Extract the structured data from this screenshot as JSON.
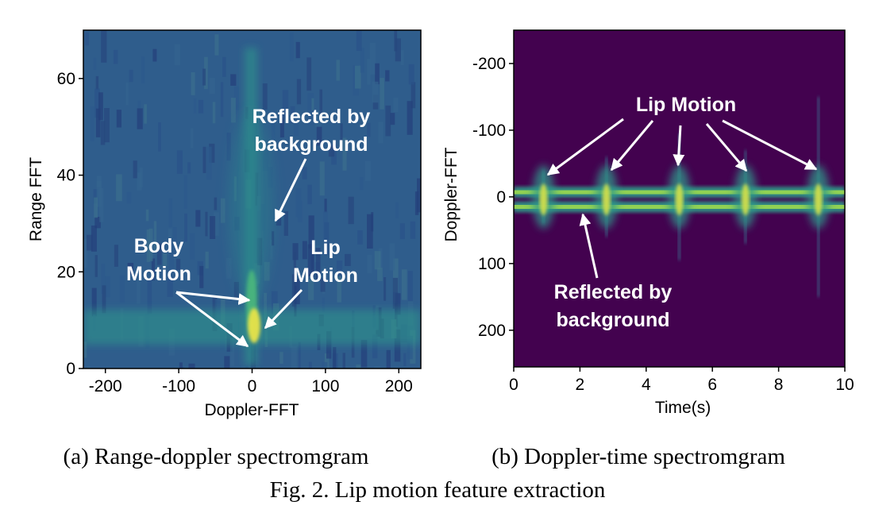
{
  "figure": {
    "caption": "Fig. 2.  Lip motion feature extraction"
  },
  "chart_data": [
    {
      "type": "heatmap",
      "subcaption": "(a) Range-doppler spectromgram",
      "xlabel": "Doppler-FFT",
      "ylabel": "Range FFT",
      "xlim": [
        -230,
        230
      ],
      "ylim": [
        0,
        70
      ],
      "xticks": [
        "-200",
        "-100",
        "0",
        "100",
        "200"
      ],
      "yticks": [
        "0",
        "20",
        "40",
        "60"
      ],
      "colormap": "viridis",
      "features": [
        {
          "name": "horizontal band",
          "range": 8,
          "doppler": [
            -230,
            230
          ],
          "intensity": "medium"
        },
        {
          "name": "zero-doppler column",
          "doppler": 0,
          "range": [
            5,
            68
          ],
          "intensity": "medium-high"
        },
        {
          "name": "peak",
          "doppler": 3,
          "range": 8,
          "intensity": "max"
        }
      ],
      "annotations": [
        {
          "text": [
            "Reflected by",
            "background"
          ],
          "target": [
            30,
            30
          ]
        },
        {
          "text": [
            "Body",
            "Motion"
          ],
          "targets": [
            [
              0,
              15
            ],
            [
              0,
              4
            ]
          ]
        },
        {
          "text": [
            "Lip",
            "Motion"
          ],
          "target": [
            15,
            8
          ]
        }
      ]
    },
    {
      "type": "heatmap",
      "subcaption": "(b) Doppler-time spectromgram",
      "xlabel": "Time(s)",
      "ylabel": "Doppler-FFT",
      "xlim": [
        0,
        10
      ],
      "ylim": [
        -250,
        255
      ],
      "y_inverted": true,
      "xticks": [
        "0",
        "2",
        "4",
        "6",
        "8",
        "10"
      ],
      "yticks": [
        "-200",
        "-100",
        "0",
        "100",
        "200"
      ],
      "colormap": "viridis",
      "bands": [
        {
          "doppler": -7,
          "intensity": "high"
        },
        {
          "doppler": 15,
          "intensity": "high"
        }
      ],
      "bursts": [
        {
          "time": 0.9,
          "doppler": [
            -40,
            40
          ]
        },
        {
          "time": 2.8,
          "doppler": [
            -60,
            60
          ]
        },
        {
          "time": 5.0,
          "doppler": [
            -95,
            95
          ]
        },
        {
          "time": 7.0,
          "doppler": [
            -70,
            70
          ]
        },
        {
          "time": 9.2,
          "doppler": [
            -150,
            150
          ]
        }
      ],
      "annotations": [
        {
          "text": [
            "Lip Motion"
          ],
          "targets": [
            [
              1.1,
              -37
            ],
            [
              2.9,
              -40
            ],
            [
              5.0,
              -45
            ],
            [
              7.0,
              -38
            ],
            [
              9.1,
              -40
            ]
          ]
        },
        {
          "text": [
            "Reflected by",
            "background"
          ],
          "target": [
            2.0,
            30
          ]
        }
      ]
    }
  ]
}
